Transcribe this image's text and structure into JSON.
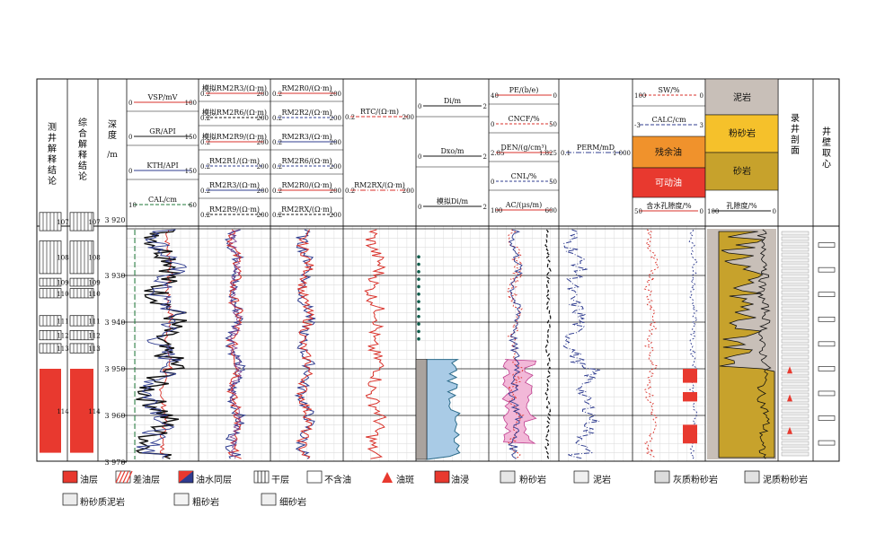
{
  "colors": {
    "oil": "#e8392f",
    "dry": "#000000",
    "depth_line": "#111111",
    "curve_red": "#d9322b",
    "curve_blue": "#2f3c8f",
    "curve_green": "#1f7a3a",
    "mudstone": "#c8bfb8",
    "siltstone": "#f5c12b",
    "sandstone": "#c7a22c",
    "residual_oil": "#f0922c",
    "movable_oil": "#e8392f",
    "pink_fill": "#f2b8d8",
    "blue_fill": "#a9cbe6",
    "gray_fill": "#aaa39e"
  },
  "columns": {
    "log_interpretation": "测井解释结论",
    "comprehensive_interpretation": "综合解释结论",
    "depth": "深度/m",
    "lithology_profile": "录井剖面",
    "wall_core": "井壁取心"
  },
  "track1": [
    {
      "label": "VSP/mV",
      "min": "0",
      "max": "100"
    },
    {
      "label": "GR/API",
      "min": "0",
      "max": "150"
    },
    {
      "label": "KTH/API",
      "min": "0",
      "max": "150"
    },
    {
      "label": "CAL/cm",
      "min": "10",
      "max": "60"
    }
  ],
  "track2": [
    {
      "label": "模拟RM2R3/(Ω·m)",
      "min": "0.2",
      "max": "200"
    },
    {
      "label": "模拟RM2R6/(Ω·m)",
      "min": "0.2",
      "max": "200"
    },
    {
      "label": "模拟RM2R9/(Ω·m)",
      "min": "0.2",
      "max": "200"
    },
    {
      "label": "RM2R1/(Ω·m)",
      "min": "0.2",
      "max": "200"
    },
    {
      "label": "RM2R3/(Ω·m)",
      "min": "0.2",
      "max": "200"
    },
    {
      "label": "RM2R9/(Ω·m)",
      "min": "0.2",
      "max": "200"
    }
  ],
  "track3": [
    {
      "label": "RM2R0/(Ω·m)",
      "min": "0.2",
      "max": "200"
    },
    {
      "label": "RM2R2/(Ω·m)",
      "min": "0.2",
      "max": "200"
    },
    {
      "label": "RM2R3/(Ω·m)",
      "min": "0.2",
      "max": "200"
    },
    {
      "label": "RM2R6/(Ω·m)",
      "min": "0.2",
      "max": "200"
    },
    {
      "label": "RM2R0/(Ω·m)",
      "min": "0.2",
      "max": "200"
    },
    {
      "label": "RM2RX/(Ω·m)",
      "min": "0.2",
      "max": "200"
    }
  ],
  "track4": [
    {
      "label": "RTC/(Ω·m)",
      "min": "0.2",
      "max": "200"
    },
    {
      "label": "RM2RX/(Ω·m)",
      "min": "0.2",
      "max": "200"
    }
  ],
  "track5": [
    {
      "label": "Di/m",
      "min": "0",
      "max": "2"
    },
    {
      "label": "Dxo/m",
      "min": "0",
      "max": "2"
    },
    {
      "label": "模拟Di/m",
      "min": "0",
      "max": "2"
    }
  ],
  "track6": [
    {
      "label": "PE/(b/e)",
      "min": "40",
      "max": "0"
    },
    {
      "label": "CNCF/%",
      "min": "0",
      "max": "50"
    },
    {
      "label": "DEN/(g/cm³)",
      "min": "2.85",
      "max": "1.825"
    },
    {
      "label": "CNL/%",
      "min": "0",
      "max": "50"
    },
    {
      "label": "AC/(μs/m)",
      "min": "100",
      "max": "600"
    }
  ],
  "track7": {
    "label": "PERM/mD",
    "min": "0.1",
    "max": "1 000"
  },
  "track8": [
    {
      "label": "SW/%",
      "min": "100",
      "max": "0"
    },
    {
      "label": "CALC/cm",
      "min": "-3",
      "max": "3"
    },
    {
      "label": "残余油",
      "min": "",
      "max": ""
    },
    {
      "label": "可动油",
      "min": "",
      "max": ""
    },
    {
      "label": "含水孔隙度/%",
      "min": "50",
      "max": "0"
    }
  ],
  "track9": [
    {
      "label": "泥岩",
      "min": "",
      "max": ""
    },
    {
      "label": "粉砂岩",
      "min": "",
      "max": ""
    },
    {
      "label": "砂岩",
      "min": "",
      "max": ""
    },
    {
      "label": "孔隙度/%",
      "min": "100",
      "max": "0"
    }
  ],
  "depths": [
    "3 920",
    "3 930",
    "3 940",
    "3 950",
    "3 960",
    "3 970"
  ],
  "layers": [
    {
      "id": "107"
    },
    {
      "id": "108"
    },
    {
      "id": "109"
    },
    {
      "id": "110"
    },
    {
      "id": "111"
    },
    {
      "id": "112"
    },
    {
      "id": "113"
    },
    {
      "id": "114"
    }
  ],
  "legend": {
    "oil_layer": "油层",
    "poor_oil_layer": "差油层",
    "oil_water_layer": "油水同层",
    "dry_layer": "干层",
    "no_oil": "不含油",
    "oil_spot": "油斑",
    "oil_immersion": "油浸",
    "siltstone": "粉砂岩",
    "mudstone": "泥岩",
    "calcareous_siltstone": "灰质粉砂岩",
    "muddy_siltstone": "泥质粉砂岩",
    "silty_mudstone": "粉砂质泥岩",
    "coarse_sandstone": "粗砂岩",
    "fine_sandstone": "细砂岩"
  }
}
